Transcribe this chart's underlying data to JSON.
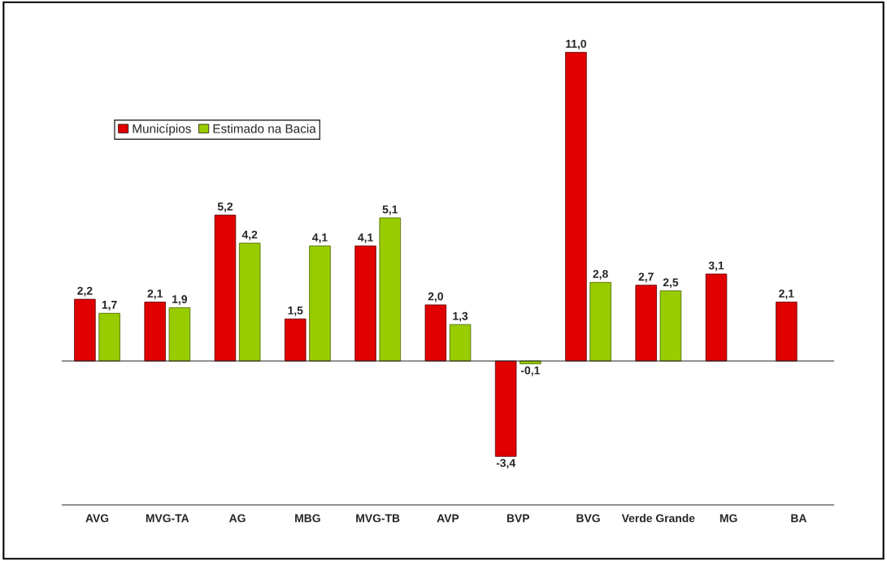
{
  "chart_data": {
    "type": "bar",
    "categories": [
      "AVG",
      "MVG-TA",
      "AG",
      "MBG",
      "MVG-TB",
      "AVP",
      "BVP",
      "BVG",
      "Verde Grande",
      "MG",
      "BA"
    ],
    "series": [
      {
        "name": "Municípios",
        "color": "#e00000",
        "values": [
          2.2,
          2.1,
          5.2,
          1.5,
          4.1,
          2.0,
          -3.4,
          11.0,
          2.7,
          3.1,
          2.1
        ],
        "value_labels": [
          "2,2",
          "2,1",
          "5,2",
          "1,5",
          "4,1",
          "2,0",
          "-3,4",
          "11,0",
          "2,7",
          "3,1",
          "2,1"
        ]
      },
      {
        "name": "Estimado na Bacia",
        "color": "#99cc00",
        "values": [
          1.7,
          1.9,
          4.2,
          4.1,
          5.1,
          1.3,
          -0.1,
          2.8,
          2.5,
          null,
          null
        ],
        "value_labels": [
          "1,7",
          "1,9",
          "4,2",
          "4,1",
          "5,1",
          "1,3",
          "-0,1",
          "2,8",
          "2,5",
          null,
          null
        ]
      }
    ],
    "legend": "top left"
  }
}
